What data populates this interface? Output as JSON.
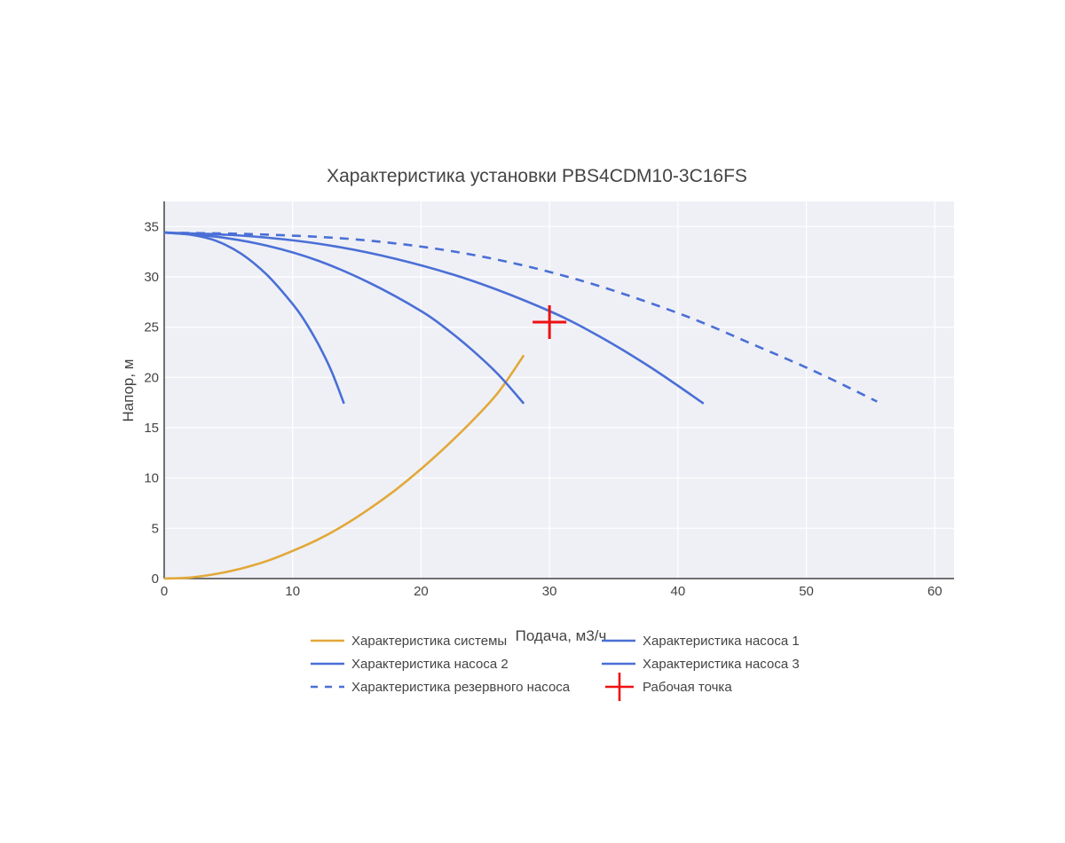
{
  "chart_data": {
    "type": "line",
    "title": "Характеристика установки PBS4CDM10-3C16FS",
    "xlabel": "Подача, м3/ч",
    "ylabel": "Напор, м",
    "xlim": [
      0,
      61.5
    ],
    "ylim": [
      0,
      37.5
    ],
    "x_ticks": [
      0,
      10,
      20,
      30,
      40,
      50,
      60
    ],
    "y_ticks": [
      0,
      5,
      10,
      15,
      20,
      25,
      30,
      35
    ],
    "grid": true,
    "legend_position": "bottom",
    "colors": {
      "system": "#e2a839",
      "pump": "#4a6fd6",
      "reserve": "#4a6fd6",
      "operating_point": "#ee1111",
      "plot_bg": "#eff0f6",
      "grid": "#ffffff",
      "axis": "#444444"
    },
    "series": [
      {
        "name": "Характеристика системы",
        "style": "solid",
        "color": "#e2a839",
        "points": [
          [
            0,
            0
          ],
          [
            2,
            0.1
          ],
          [
            4,
            0.45
          ],
          [
            6,
            1.0
          ],
          [
            8,
            1.75
          ],
          [
            10,
            2.75
          ],
          [
            12,
            3.9
          ],
          [
            14,
            5.3
          ],
          [
            16,
            6.95
          ],
          [
            18,
            8.8
          ],
          [
            20,
            10.9
          ],
          [
            22,
            13.2
          ],
          [
            24,
            15.7
          ],
          [
            26,
            18.5
          ],
          [
            28,
            22.2
          ]
        ]
      },
      {
        "name": "Характеристика насоса 1",
        "style": "solid",
        "color": "#4a6fd6",
        "points": [
          [
            0,
            34.4
          ],
          [
            2,
            34.2
          ],
          [
            4,
            33.6
          ],
          [
            6,
            32.3
          ],
          [
            8,
            30.2
          ],
          [
            10,
            27.3
          ],
          [
            11,
            25.5
          ],
          [
            12,
            23.3
          ],
          [
            13,
            20.7
          ],
          [
            14,
            17.4
          ]
        ]
      },
      {
        "name": "Характеристика насоса 2",
        "style": "solid",
        "color": "#4a6fd6",
        "points": [
          [
            0,
            34.4
          ],
          [
            4,
            34.0
          ],
          [
            8,
            33.1
          ],
          [
            12,
            31.6
          ],
          [
            16,
            29.4
          ],
          [
            20,
            26.6
          ],
          [
            22,
            24.8
          ],
          [
            24,
            22.7
          ],
          [
            26,
            20.3
          ],
          [
            28,
            17.4
          ]
        ]
      },
      {
        "name": "Характеристика насоса 3",
        "style": "solid",
        "color": "#4a6fd6",
        "points": [
          [
            0,
            34.4
          ],
          [
            6,
            34.1
          ],
          [
            12,
            33.3
          ],
          [
            18,
            31.8
          ],
          [
            24,
            29.6
          ],
          [
            30,
            26.6
          ],
          [
            34,
            24.0
          ],
          [
            38,
            20.9
          ],
          [
            42,
            17.4
          ]
        ]
      },
      {
        "name": "Характеристика резервного насоса",
        "style": "dash",
        "color": "#4a6fd6",
        "points": [
          [
            0,
            34.4
          ],
          [
            8,
            34.2
          ],
          [
            16,
            33.6
          ],
          [
            24,
            32.2
          ],
          [
            32,
            29.8
          ],
          [
            40,
            26.4
          ],
          [
            46,
            23.2
          ],
          [
            51,
            20.4
          ],
          [
            55.5,
            17.6
          ]
        ]
      }
    ],
    "operating_point": {
      "name": "Рабочая точка",
      "x": 30,
      "y": 25.5,
      "marker": "cross",
      "color": "#ee1111"
    },
    "legend": [
      {
        "label": "Характеристика системы",
        "symbol": "line",
        "color": "#e2a839"
      },
      {
        "label": "Характеристика насоса 1",
        "symbol": "line",
        "color": "#4a6fd6"
      },
      {
        "label": "Характеристика насоса 2",
        "symbol": "line",
        "color": "#4a6fd6"
      },
      {
        "label": "Характеристика насоса 3",
        "symbol": "line",
        "color": "#4a6fd6"
      },
      {
        "label": "Характеристика резервного насоса",
        "symbol": "dash",
        "color": "#4a6fd6"
      },
      {
        "label": "Рабочая точка",
        "symbol": "cross",
        "color": "#ee1111"
      }
    ]
  }
}
